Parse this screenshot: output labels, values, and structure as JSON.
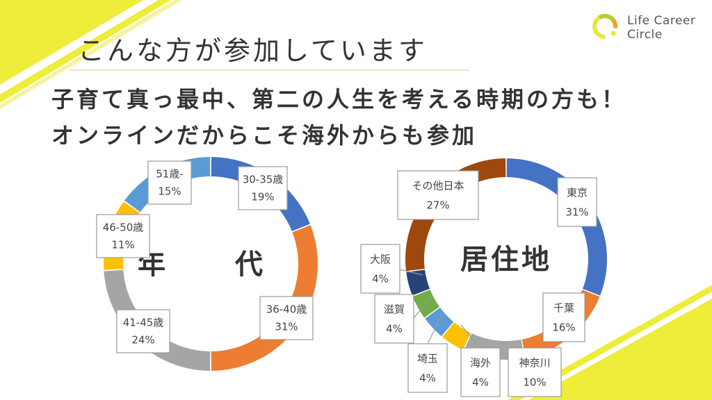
{
  "header": {
    "title": "こんな方が参加しています",
    "subtitle_line1": "子育て真っ最中、第二の人生を考える時期の方も！",
    "subtitle_line2": "オンラインだからこそ海外からも参加"
  },
  "logo": {
    "line1": "Life Career",
    "line2": "Circle",
    "colors": [
      "#e8e63c",
      "#b6ce2e",
      "#f0a22a"
    ]
  },
  "theme": {
    "accent_yellow": "#eded3a",
    "label_border": "#9a9a9a"
  },
  "chart_data": [
    {
      "type": "pie",
      "title": "年　代",
      "categories": [
        "30-35歳",
        "36-40歳",
        "41-45歳",
        "46-50歳",
        "51歳-"
      ],
      "values": [
        19,
        31,
        24,
        11,
        15
      ],
      "labels": [
        "19%",
        "31%",
        "24%",
        "11%",
        "15%"
      ],
      "colors": [
        "#4472c4",
        "#ed7d31",
        "#a5a5a5",
        "#ffc000",
        "#5b9bd5"
      ]
    },
    {
      "type": "pie",
      "title": "居住地",
      "categories": [
        "東京",
        "千葉",
        "神奈川",
        "海外",
        "埼玉",
        "滋賀",
        "大阪",
        "その他日本"
      ],
      "values": [
        31,
        16,
        10,
        4,
        4,
        4,
        4,
        27
      ],
      "labels": [
        "31%",
        "16%",
        "10%",
        "4%",
        "4%",
        "4%",
        "4%",
        "27%"
      ],
      "colors": [
        "#4472c4",
        "#ed7d31",
        "#a5a5a5",
        "#ffc000",
        "#5b9bd5",
        "#70ad47",
        "#264478",
        "#9e480e"
      ]
    }
  ]
}
